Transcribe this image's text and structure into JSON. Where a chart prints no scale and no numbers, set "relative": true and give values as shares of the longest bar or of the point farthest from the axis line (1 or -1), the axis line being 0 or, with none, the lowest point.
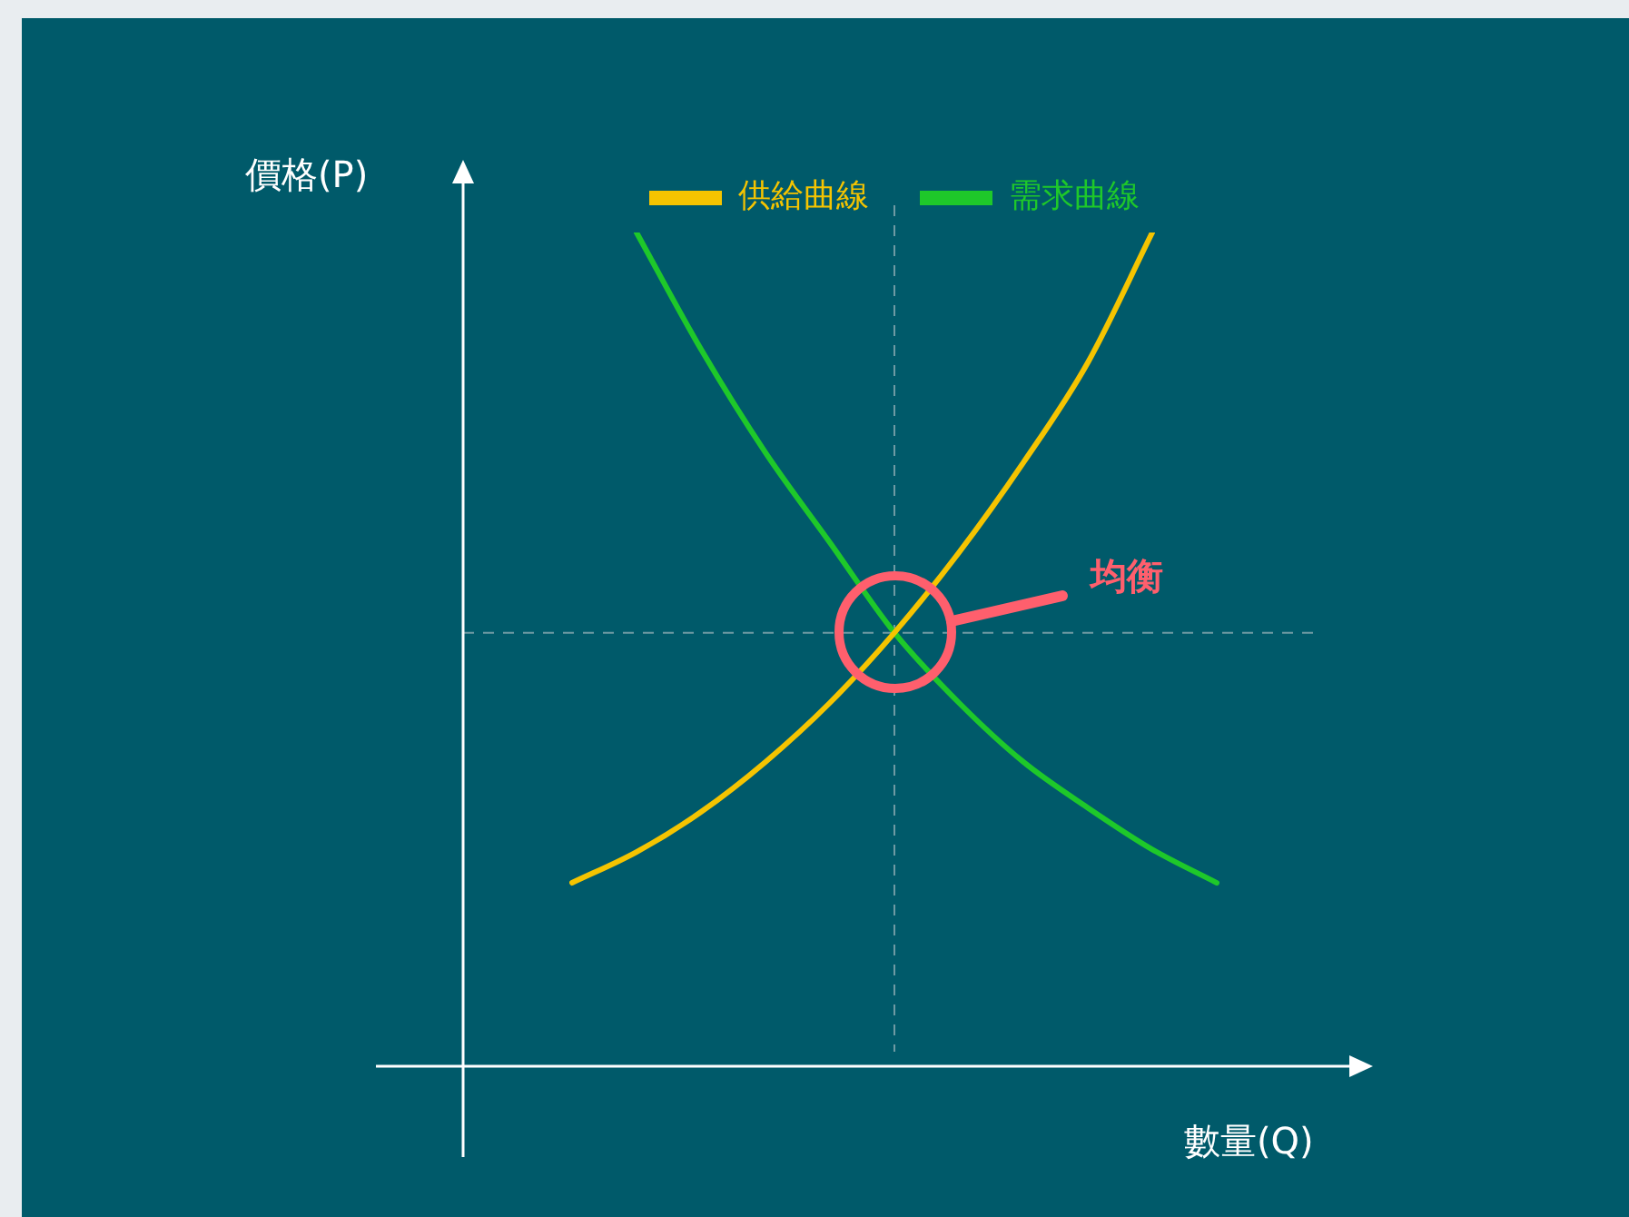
{
  "chart_data": {
    "type": "line",
    "relative": true,
    "xlabel": "數量(Q)",
    "ylabel": "價格(P)",
    "legend": "top",
    "marker": "none",
    "line_style": "solid",
    "categories": [
      null,
      null,
      null,
      null,
      null,
      null,
      null,
      null,
      null,
      null,
      null
    ],
    "series": [
      {
        "name": "供給曲線",
        "color": "#f5c400",
        "values": [
          0.22,
          0.257,
          0.305,
          0.365,
          0.436,
          0.52,
          0.616,
          0.724,
          0.844,
          1.0,
          null
        ]
      },
      {
        "name": "需求曲線",
        "color": "#1ec82a",
        "values": [
          null,
          1.0,
          0.86,
          0.736,
          0.628,
          0.52,
          0.436,
          0.365,
          0.31,
          0.26,
          0.22
        ]
      }
    ],
    "ref_lines": [
      {
        "axis": "y",
        "value": 0.52,
        "color": "#6f9aa3",
        "line_style": "dashed"
      }
    ],
    "annotations": [
      "均衡"
    ]
  }
}
